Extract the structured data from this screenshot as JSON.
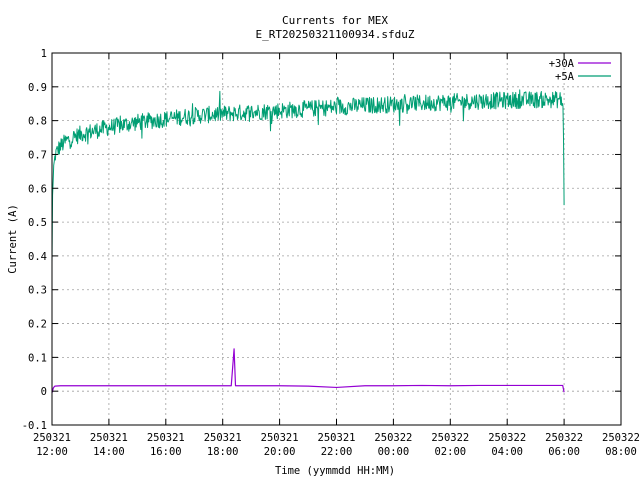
{
  "chart_data": {
    "type": "line",
    "title": "Currents for MEX",
    "subtitle": "E_RT20250321100934.sfduZ",
    "xlabel": "Time (yymmdd HH:MM)",
    "ylabel": "Current (A)",
    "ylim": [
      -0.1,
      1.0
    ],
    "xlim_hours": [
      0,
      20
    ],
    "grid": true,
    "legend_position": "top-right",
    "y_ticks": [
      "-0.1",
      "0",
      "0.1",
      "0.2",
      "0.3",
      "0.4",
      "0.5",
      "0.6",
      "0.7",
      "0.8",
      "0.9",
      "1"
    ],
    "x_ticks": [
      {
        "date": "250321",
        "time": "12:00"
      },
      {
        "date": "250321",
        "time": "14:00"
      },
      {
        "date": "250321",
        "time": "16:00"
      },
      {
        "date": "250321",
        "time": "18:00"
      },
      {
        "date": "250321",
        "time": "20:00"
      },
      {
        "date": "250321",
        "time": "22:00"
      },
      {
        "date": "250322",
        "time": "00:00"
      },
      {
        "date": "250322",
        "time": "02:00"
      },
      {
        "date": "250322",
        "time": "04:00"
      },
      {
        "date": "250322",
        "time": "06:00"
      },
      {
        "date": "250322",
        "time": "08:00"
      }
    ],
    "series": [
      {
        "name": "+30A",
        "color": "#9400d3",
        "x_hours": [
          0,
          0.05,
          0.1,
          0.3,
          1,
          2,
          3,
          4,
          5,
          6.3,
          6.4,
          6.45,
          7,
          8,
          9,
          10,
          11,
          12,
          13,
          14,
          15,
          16,
          17,
          17.95,
          18.0
        ],
        "values": [
          -0.005,
          0.01,
          0.015,
          0.016,
          0.016,
          0.016,
          0.016,
          0.016,
          0.016,
          0.016,
          0.125,
          0.016,
          0.016,
          0.016,
          0.015,
          0.011,
          0.016,
          0.016,
          0.017,
          0.016,
          0.017,
          0.017,
          0.017,
          0.017,
          -0.003
        ]
      },
      {
        "name": "+5A",
        "color": "#009e73",
        "x_hours": [
          0,
          0.02,
          0.06,
          0.12,
          0.25,
          0.5,
          1,
          2,
          3,
          4,
          5,
          6,
          7,
          8,
          9,
          10,
          11,
          12,
          13,
          14,
          15,
          16,
          17,
          17.9,
          17.97,
          18.0
        ],
        "values": [
          0.38,
          0.58,
          0.66,
          0.7,
          0.72,
          0.74,
          0.76,
          0.78,
          0.795,
          0.805,
          0.815,
          0.82,
          0.825,
          0.83,
          0.835,
          0.84,
          0.845,
          0.848,
          0.852,
          0.855,
          0.858,
          0.86,
          0.862,
          0.862,
          0.84,
          0.55
        ],
        "noise_amplitude": 0.025
      }
    ]
  }
}
